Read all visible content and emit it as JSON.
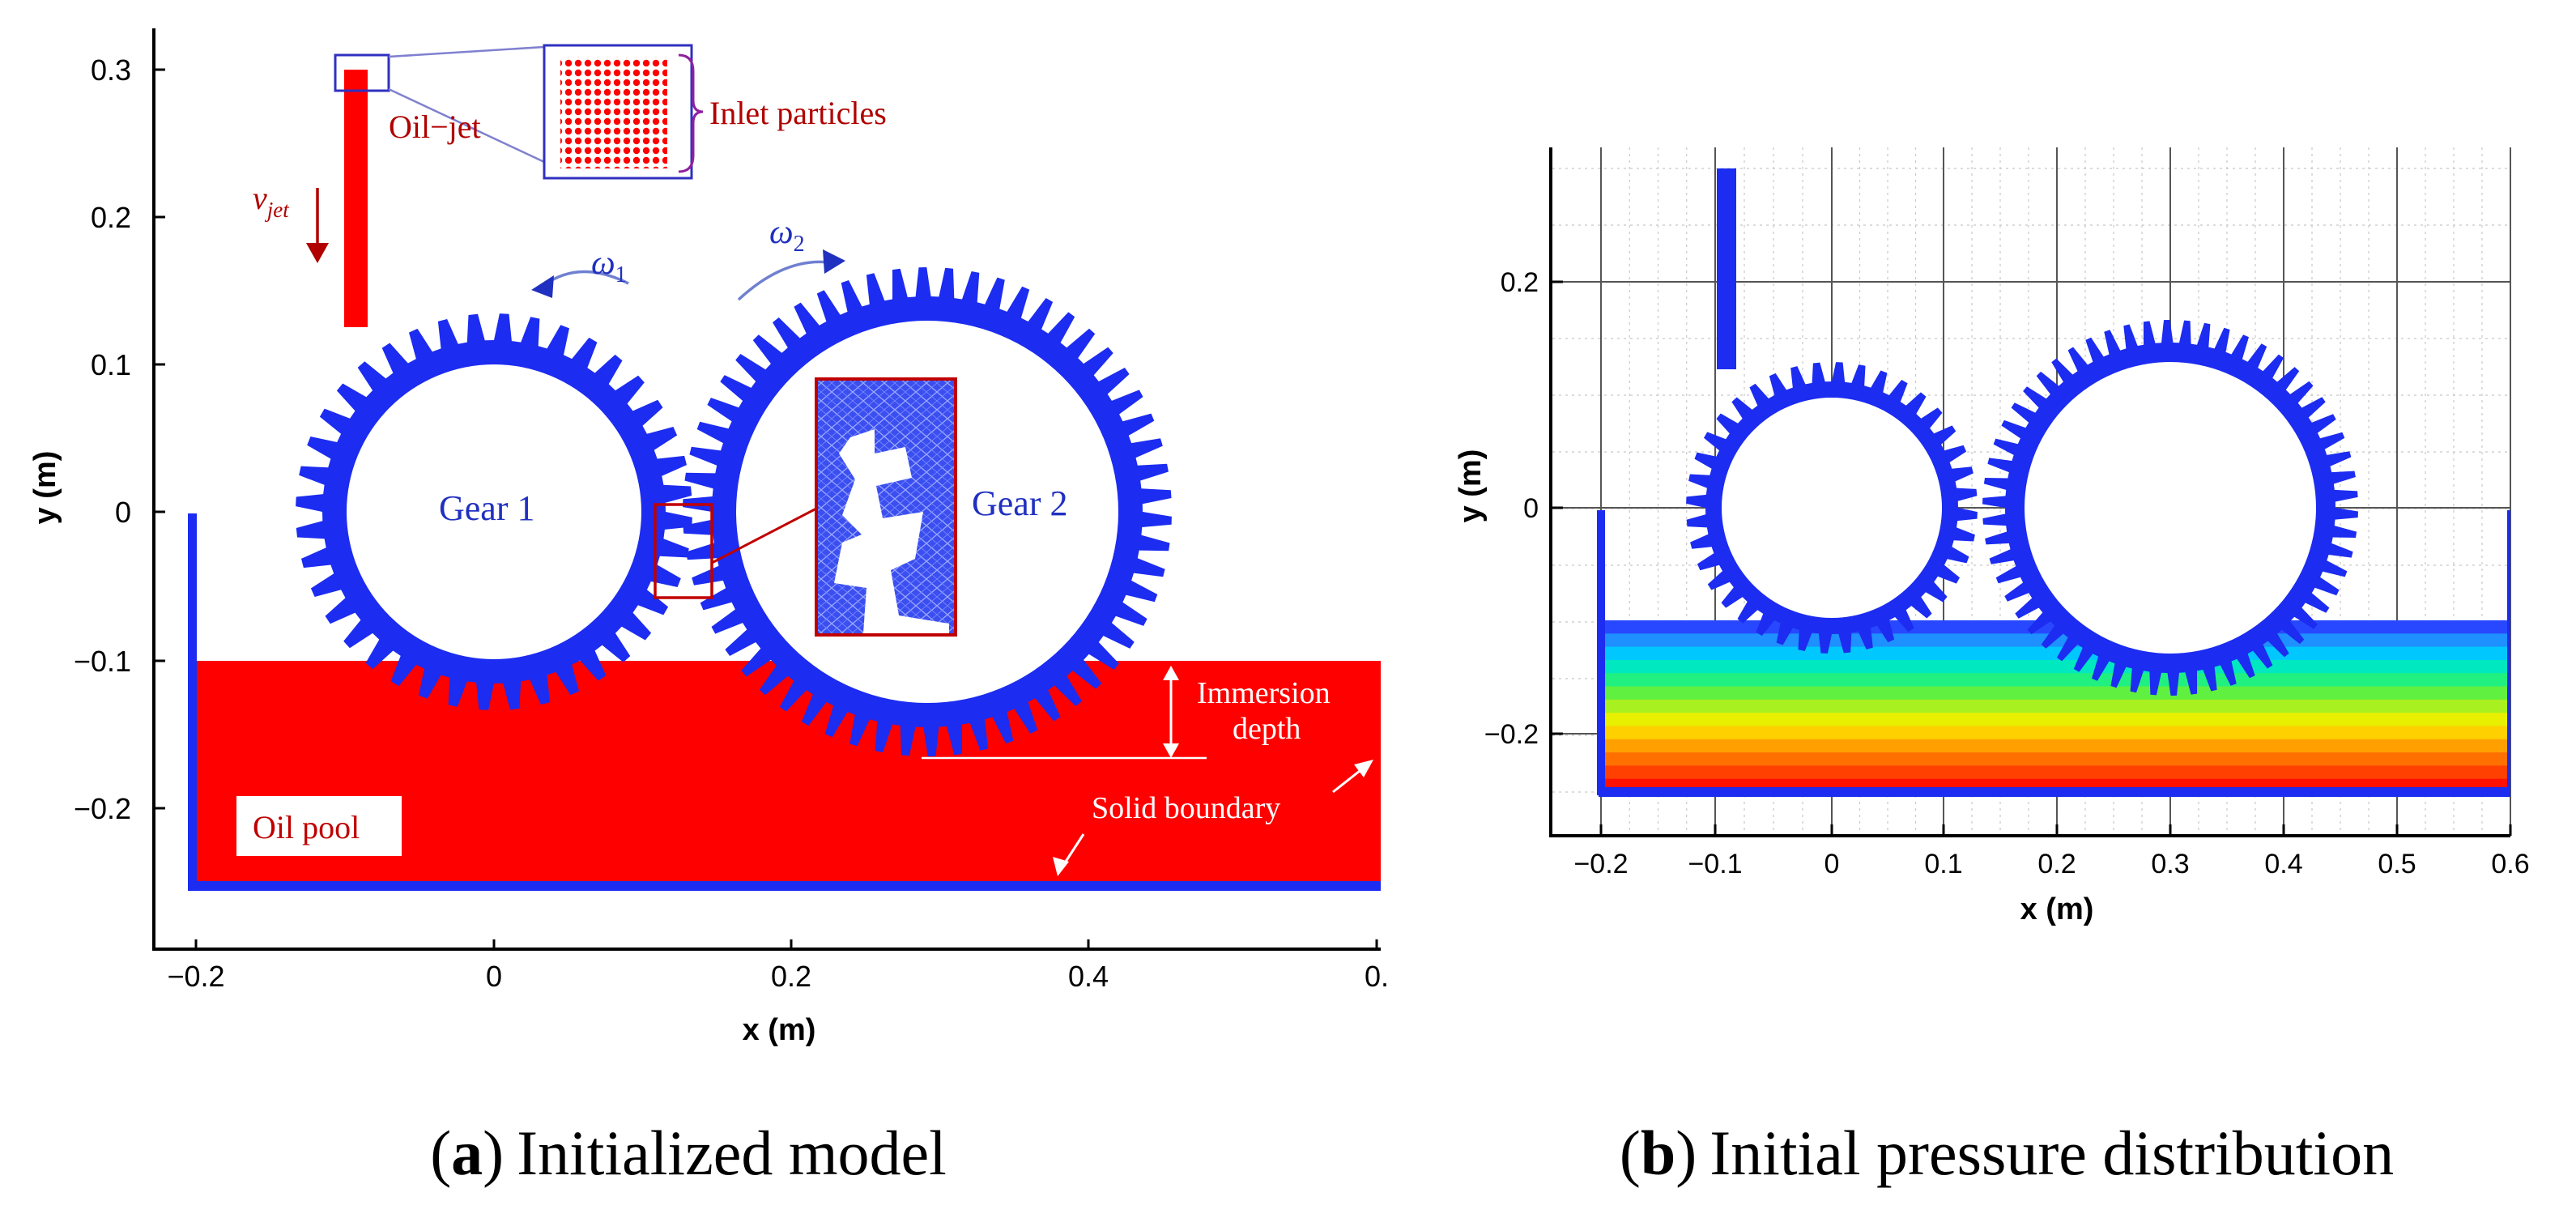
{
  "panel_a": {
    "x_ticks": [
      "−0.2",
      "0",
      "0.2",
      "0.4",
      "0."
    ],
    "y_ticks": [
      "0.3",
      "0.2",
      "0.1",
      "0",
      "−0.1",
      "−0.2"
    ],
    "xlabel": "x (m)",
    "ylabel": "y (m)",
    "labels": {
      "oil_jet": "Oil−jet",
      "inlet_particles": "Inlet particles",
      "v_jet_main": "v",
      "v_jet_sub": "jet",
      "omega1_main": "ω",
      "omega1_sub": "1",
      "omega2_main": "ω",
      "omega2_sub": "2",
      "gear1": "Gear 1",
      "gear2": "Gear 2",
      "immersion_line1": "Immersion",
      "immersion_line2": "depth",
      "oil_pool": "Oil pool",
      "solid_boundary": "Solid boundary"
    },
    "caption_letter": "a",
    "caption_text": "Initialized model"
  },
  "panel_b": {
    "x_ticks": [
      "−0.2",
      "−0.1",
      "0",
      "0.1",
      "0.2",
      "0.3",
      "0.4",
      "0.5",
      "0.6"
    ],
    "y_ticks": [
      "0.2",
      "0",
      "−0.2"
    ],
    "xlabel": "x (m)",
    "ylabel": "y (m)",
    "caption_letter": "b",
    "caption_text": "Initial pressure distribution"
  },
  "colors": {
    "gear_blue": "#1c2cf0",
    "oil_red": "#ff0000",
    "label_red": "#b00000",
    "label_blue": "#2030c0",
    "pressure_gradient": [
      "#2848ff",
      "#1e90ff",
      "#00c8ff",
      "#00e8c0",
      "#20f080",
      "#60f040",
      "#a8f020",
      "#e8f000",
      "#ffd000",
      "#ffa000",
      "#ff7000",
      "#ff4000",
      "#ff1000"
    ]
  }
}
